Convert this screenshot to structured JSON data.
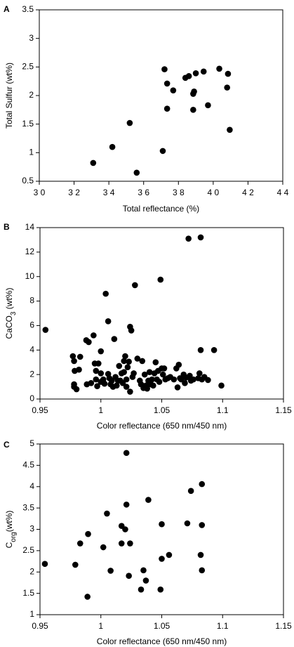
{
  "chart_data": [
    {
      "panel": "A",
      "type": "scatter",
      "xlabel": "Total reflectance (%)",
      "ylabel": "Total Sulfur (wt%)",
      "xlim": [
        30,
        44
      ],
      "ylim": [
        0.5,
        3.5
      ],
      "xticks": [
        30,
        32,
        34,
        36,
        38,
        40,
        42,
        44
      ],
      "yticks": [
        0.5,
        1,
        1.5,
        2,
        2.5,
        3,
        3.5
      ],
      "xtick_labels": [
        "3 0",
        "3 2",
        "3 4",
        "3 6",
        "3 8",
        "4 0",
        "4 2",
        "4 4"
      ],
      "ytick_labels": [
        "0.5",
        "1",
        "1.5",
        "2",
        "2.5",
        "3",
        "3.5"
      ],
      "points": [
        [
          33.1,
          0.82
        ],
        [
          34.2,
          1.1
        ],
        [
          35.2,
          1.52
        ],
        [
          35.6,
          0.65
        ],
        [
          37.1,
          1.03
        ],
        [
          37.2,
          2.46
        ],
        [
          37.35,
          2.21
        ],
        [
          37.35,
          1.77
        ],
        [
          37.7,
          2.09
        ],
        [
          38.4,
          2.31
        ],
        [
          38.6,
          2.34
        ],
        [
          38.85,
          2.03
        ],
        [
          38.9,
          2.07
        ],
        [
          38.85,
          1.75
        ],
        [
          39.0,
          2.39
        ],
        [
          39.45,
          2.42
        ],
        [
          39.7,
          1.83
        ],
        [
          40.35,
          2.47
        ],
        [
          40.85,
          2.38
        ],
        [
          40.8,
          2.14
        ],
        [
          40.95,
          1.4
        ]
      ]
    },
    {
      "panel": "B",
      "type": "scatter",
      "xlabel": "Color reflectance (650 nm/450 nm)",
      "ylabel": "CaCO3 (wt%)",
      "ylabel_main": "CaCO",
      "ylabel_sub": "3",
      "ylabel_tail": " (wt%)",
      "xlim": [
        0.95,
        1.15
      ],
      "ylim": [
        0,
        14
      ],
      "xticks": [
        0.95,
        1,
        1.05,
        1.1,
        1.15
      ],
      "yticks": [
        0,
        2,
        4,
        6,
        8,
        10,
        12,
        14
      ],
      "xtick_labels": [
        "0.95",
        "1",
        "1.05",
        "1.1",
        "1.15"
      ],
      "ytick_labels": [
        "0",
        "2",
        "4",
        "6",
        "8",
        "10",
        "12",
        "14"
      ],
      "points": [
        [
          0.9545,
          5.65
        ],
        [
          0.977,
          3.5
        ],
        [
          0.978,
          3.1
        ],
        [
          0.978,
          1.2
        ],
        [
          0.978,
          1.0
        ],
        [
          0.9785,
          2.3
        ],
        [
          0.98,
          0.8
        ],
        [
          0.982,
          2.4
        ],
        [
          0.983,
          3.45
        ],
        [
          0.988,
          4.8
        ],
        [
          0.9885,
          1.2
        ],
        [
          0.99,
          4.65
        ],
        [
          0.992,
          1.3
        ],
        [
          0.994,
          5.2
        ],
        [
          0.995,
          2.9
        ],
        [
          0.996,
          2.3
        ],
        [
          0.996,
          1.6
        ],
        [
          0.997,
          1.05
        ],
        [
          0.998,
          2.9
        ],
        [
          1.0,
          3.9
        ],
        [
          1.0,
          2.1
        ],
        [
          1.0,
          1.4
        ],
        [
          1.002,
          1.6
        ],
        [
          1.003,
          1.25
        ],
        [
          1.004,
          8.6
        ],
        [
          1.006,
          6.35
        ],
        [
          1.006,
          2.05
        ],
        [
          1.007,
          1.7
        ],
        [
          1.008,
          1.2
        ],
        [
          1.009,
          1.5
        ],
        [
          1.01,
          1.0
        ],
        [
          1.011,
          4.9
        ],
        [
          1.012,
          1.8
        ],
        [
          1.013,
          1.1
        ],
        [
          1.014,
          1.5
        ],
        [
          1.015,
          2.7
        ],
        [
          1.016,
          1.5
        ],
        [
          1.017,
          2.1
        ],
        [
          1.018,
          1.3
        ],
        [
          1.019,
          3.1
        ],
        [
          1.019,
          2.2
        ],
        [
          1.02,
          3.5
        ],
        [
          1.021,
          1.6
        ],
        [
          1.021,
          1.0
        ],
        [
          1.022,
          2.6
        ],
        [
          1.023,
          3.05
        ],
        [
          1.024,
          5.9
        ],
        [
          1.024,
          0.6
        ],
        [
          1.025,
          5.6
        ],
        [
          1.026,
          1.8
        ],
        [
          1.027,
          2.1
        ],
        [
          1.028,
          9.3
        ],
        [
          1.03,
          3.3
        ],
        [
          1.032,
          1.5
        ],
        [
          1.033,
          1.2
        ],
        [
          1.034,
          3.1
        ],
        [
          1.035,
          0.9
        ],
        [
          1.036,
          2.0
        ],
        [
          1.037,
          1.1
        ],
        [
          1.038,
          0.85
        ],
        [
          1.039,
          1.5
        ],
        [
          1.04,
          2.2
        ],
        [
          1.041,
          1.2
        ],
        [
          1.042,
          1.6
        ],
        [
          1.043,
          1.1
        ],
        [
          1.044,
          2.1
        ],
        [
          1.045,
          3.0
        ],
        [
          1.046,
          1.6
        ],
        [
          1.047,
          2.3
        ],
        [
          1.048,
          1.4
        ],
        [
          1.049,
          9.75
        ],
        [
          1.05,
          2.5
        ],
        [
          1.051,
          2.0
        ],
        [
          1.052,
          2.5
        ],
        [
          1.053,
          1.6
        ],
        [
          1.055,
          1.7
        ],
        [
          1.057,
          1.8
        ],
        [
          1.06,
          1.6
        ],
        [
          1.062,
          2.5
        ],
        [
          1.063,
          0.95
        ],
        [
          1.064,
          2.8
        ],
        [
          1.065,
          1.7
        ],
        [
          1.066,
          1.6
        ],
        [
          1.068,
          2.0
        ],
        [
          1.069,
          1.3
        ],
        [
          1.07,
          1.75
        ],
        [
          1.072,
          13.1
        ],
        [
          1.073,
          1.9
        ],
        [
          1.074,
          1.5
        ],
        [
          1.076,
          1.6
        ],
        [
          1.08,
          1.7
        ],
        [
          1.081,
          2.1
        ],
        [
          1.082,
          13.2
        ],
        [
          1.082,
          4.0
        ],
        [
          1.083,
          1.6
        ],
        [
          1.085,
          1.8
        ],
        [
          1.088,
          1.55
        ],
        [
          1.093,
          4.0
        ],
        [
          1.099,
          1.1
        ]
      ]
    },
    {
      "panel": "C",
      "type": "scatter",
      "xlabel": "Color reflectance (650 nm/450 nm)",
      "ylabel": "Corg (wt%)",
      "ylabel_main": "C",
      "ylabel_sub": "org",
      "ylabel_tail": "(wt%)",
      "xlim": [
        0.95,
        1.15
      ],
      "ylim": [
        1,
        5
      ],
      "xticks": [
        0.95,
        1,
        1.05,
        1.1,
        1.15
      ],
      "yticks": [
        1,
        1.5,
        2,
        2.5,
        3,
        3.5,
        4,
        4.5,
        5
      ],
      "xtick_labels": [
        "0.95",
        "1",
        "1.05",
        "1.1",
        "1.15"
      ],
      "ytick_labels": [
        "1",
        "1.5",
        "2",
        "2.5",
        "3",
        "3.5",
        "4",
        "4.5",
        "5"
      ],
      "points": [
        [
          0.954,
          2.19
        ],
        [
          0.979,
          2.17
        ],
        [
          0.983,
          2.67
        ],
        [
          0.9895,
          2.89
        ],
        [
          0.989,
          1.42
        ],
        [
          1.002,
          2.58
        ],
        [
          1.005,
          3.37
        ],
        [
          1.008,
          2.03
        ],
        [
          1.017,
          3.08
        ],
        [
          1.017,
          2.67
        ],
        [
          1.02,
          3.0
        ],
        [
          1.021,
          3.58
        ],
        [
          1.021,
          4.79
        ],
        [
          1.023,
          1.91
        ],
        [
          1.024,
          2.67
        ],
        [
          1.033,
          1.59
        ],
        [
          1.035,
          2.04
        ],
        [
          1.037,
          1.8
        ],
        [
          1.039,
          3.69
        ],
        [
          1.049,
          1.59
        ],
        [
          1.05,
          3.12
        ],
        [
          1.05,
          2.31
        ],
        [
          1.056,
          2.4
        ],
        [
          1.071,
          3.14
        ],
        [
          1.074,
          3.9
        ],
        [
          1.082,
          2.4
        ],
        [
          1.083,
          4.06
        ],
        [
          1.083,
          3.1
        ],
        [
          1.083,
          2.04
        ]
      ]
    }
  ]
}
